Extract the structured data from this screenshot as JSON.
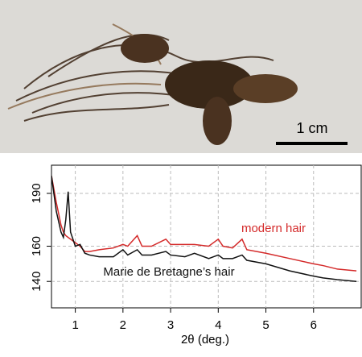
{
  "photo": {
    "scale_label": "1 cm"
  },
  "chart_data": {
    "type": "line",
    "x_label": "2θ (deg.)",
    "x": [
      0.5,
      0.6,
      0.7,
      0.75,
      0.8,
      0.85,
      0.9,
      1.0,
      1.1,
      1.2,
      1.3,
      1.5,
      1.8,
      2.0,
      2.1,
      2.3,
      2.4,
      2.6,
      2.9,
      3.0,
      3.3,
      3.5,
      3.8,
      4.0,
      4.1,
      4.3,
      4.5,
      4.6,
      5.0,
      5.5,
      6.0,
      6.2,
      6.5,
      6.9
    ],
    "series": [
      {
        "name": "modern hair",
        "color": "#d42a2a",
        "values": [
          200,
          185,
          172,
          168,
          166,
          165,
          164,
          162,
          160,
          157,
          157,
          158,
          159,
          161,
          160,
          166,
          160,
          160,
          164,
          161,
          161,
          161,
          160,
          164,
          160,
          159,
          164,
          158,
          156,
          153,
          150,
          149,
          147,
          146
        ]
      },
      {
        "name": "Marie de Bretagne’s hair",
        "color": "#111111",
        "values": [
          200,
          180,
          168,
          165,
          175,
          191,
          168,
          160,
          161,
          156,
          155,
          154,
          154,
          158,
          155,
          158,
          155,
          155,
          157,
          155,
          154,
          156,
          153,
          155,
          153,
          153,
          155,
          152,
          150,
          146,
          143,
          142,
          141,
          140
        ]
      }
    ],
    "xlim": [
      0.5,
      7.0
    ],
    "xticks": [
      1,
      2,
      3,
      4,
      5,
      6
    ],
    "ylim": [
      125,
      206
    ],
    "yticks": [
      140,
      160,
      190
    ],
    "grid": true
  }
}
